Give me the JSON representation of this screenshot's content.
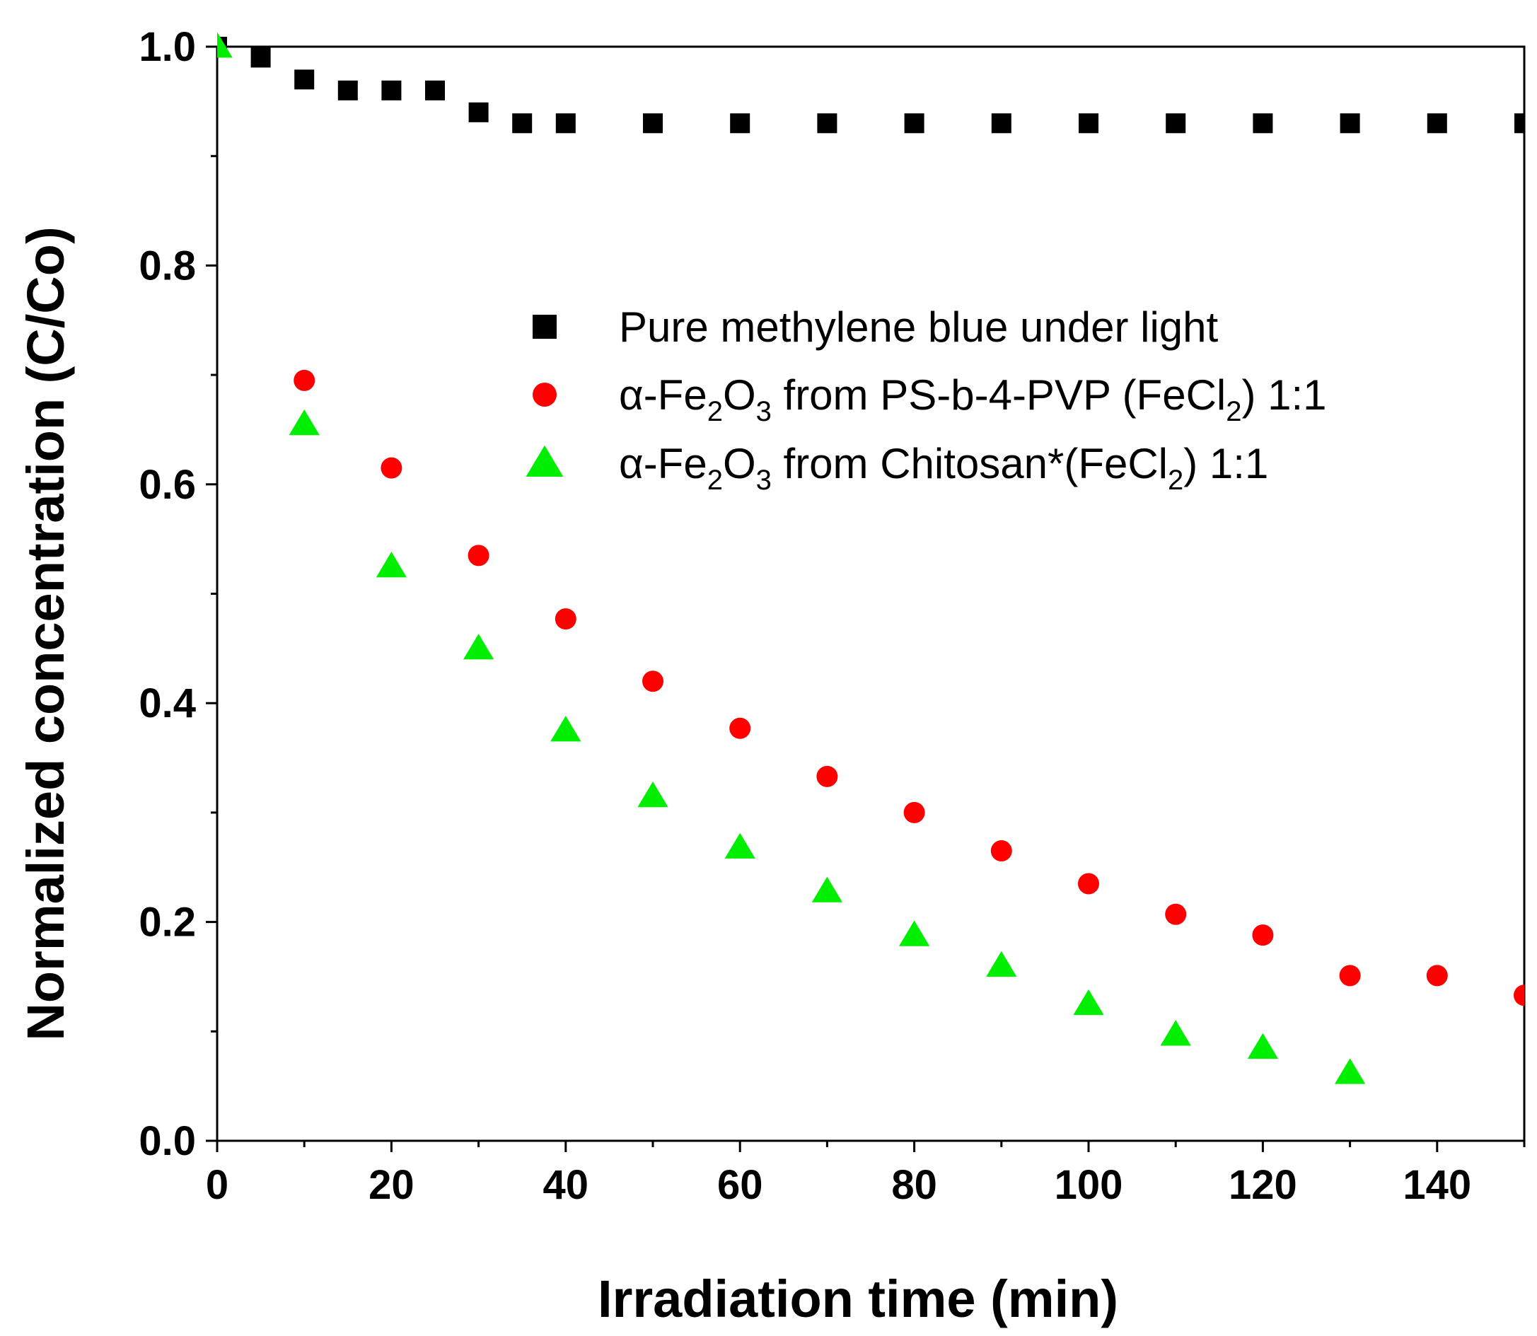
{
  "chart_data": {
    "type": "scatter",
    "title": "",
    "xlabel": "Irradiation time (min)",
    "ylabel": "Normalized concentration (C/Co)",
    "xlim": [
      0,
      150
    ],
    "ylim": [
      0,
      1.0
    ],
    "xticks": [
      0,
      20,
      40,
      60,
      80,
      100,
      120,
      140
    ],
    "xtick_labels": [
      "0",
      "20",
      "40",
      "60",
      "80",
      "100",
      "120",
      "140"
    ],
    "yticks": [
      0.0,
      0.2,
      0.4,
      0.6,
      0.8,
      1.0
    ],
    "ytick_labels": [
      "0.0",
      "0.2",
      "0.4",
      "0.6",
      "0.8",
      "1.0"
    ],
    "grid": false,
    "legend_position": "center-right",
    "series": [
      {
        "name": "Pure methylene blue under light",
        "label_parts": [
          "Pure methylene blue under light"
        ],
        "marker": "square",
        "color": "#000000",
        "x": [
          0,
          5,
          10,
          15,
          20,
          25,
          30,
          35,
          40,
          50,
          60,
          70,
          80,
          90,
          100,
          110,
          120,
          130,
          140,
          150
        ],
        "y": [
          1.0,
          0.99,
          0.97,
          0.96,
          0.96,
          0.96,
          0.94,
          0.93,
          0.93,
          0.93,
          0.93,
          0.93,
          0.93,
          0.93,
          0.93,
          0.93,
          0.93,
          0.93,
          0.93,
          0.93
        ]
      },
      {
        "name": "α-Fe2O3 from PS-b-4-PVP (FeCl2) 1:1",
        "label_parts": [
          "α-Fe",
          "2",
          "O",
          "3",
          " from PS-b-4-PVP (FeCl",
          "2",
          ") 1:1"
        ],
        "marker": "circle",
        "color": "#ff0000",
        "x": [
          10,
          20,
          30,
          40,
          50,
          60,
          70,
          80,
          90,
          100,
          110,
          120,
          130,
          140,
          150
        ],
        "y": [
          0.695,
          0.615,
          0.535,
          0.477,
          0.42,
          0.377,
          0.333,
          0.3,
          0.265,
          0.235,
          0.207,
          0.188,
          0.151,
          0.151,
          0.133
        ]
      },
      {
        "name": "α-Fe2O3 from Chitosan*(FeCl2) 1:1",
        "label_parts": [
          "α-Fe",
          "2",
          "O",
          "3",
          " from Chitosan*(FeCl",
          "2",
          ") 1:1"
        ],
        "marker": "triangle",
        "color": "#00ee00",
        "x": [
          0,
          10,
          20,
          30,
          40,
          50,
          60,
          70,
          80,
          90,
          100,
          110,
          120,
          130
        ],
        "y": [
          1.0,
          0.655,
          0.525,
          0.45,
          0.375,
          0.315,
          0.268,
          0.228,
          0.188,
          0.16,
          0.125,
          0.097,
          0.085,
          0.062
        ]
      }
    ]
  }
}
